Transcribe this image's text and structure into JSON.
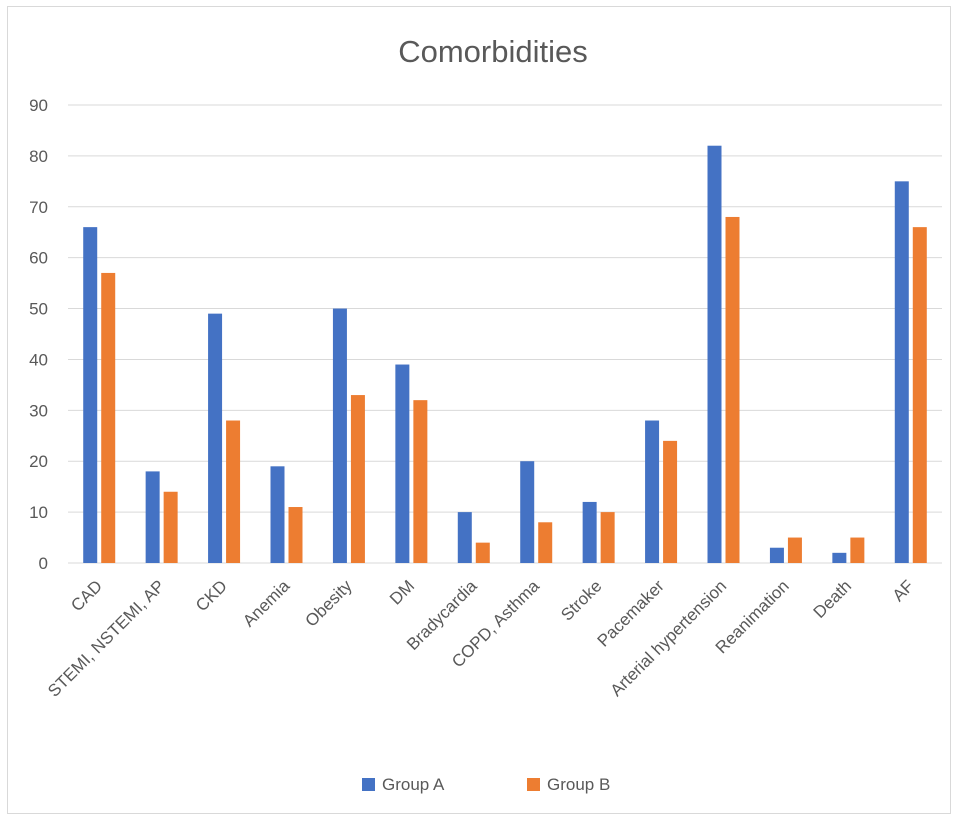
{
  "chart_data": {
    "type": "bar",
    "title": "Comorbidities",
    "xlabel": "",
    "ylabel": "",
    "ylim": [
      0,
      90
    ],
    "yticks": [
      0,
      10,
      20,
      30,
      40,
      50,
      60,
      70,
      80,
      90
    ],
    "grid": true,
    "legend_position": "bottom",
    "categories": [
      "CAD",
      "STEMI, NSTEMI, AP",
      "CKD",
      "Anemia",
      "Obesity",
      "DM",
      "Bradycardia",
      "COPD, Asthma",
      "Stroke",
      "Pacemaker",
      "Arterial hypertension",
      "Reanimation",
      "Death",
      "AF"
    ],
    "series": [
      {
        "name": "Group A",
        "color": "#4472c4",
        "values": [
          66,
          18,
          49,
          19,
          50,
          39,
          10,
          20,
          12,
          28,
          82,
          3,
          2,
          75
        ]
      },
      {
        "name": "Group B",
        "color": "#ed7d31",
        "values": [
          57,
          14,
          28,
          11,
          33,
          32,
          4,
          8,
          10,
          24,
          68,
          5,
          5,
          66
        ]
      }
    ]
  }
}
